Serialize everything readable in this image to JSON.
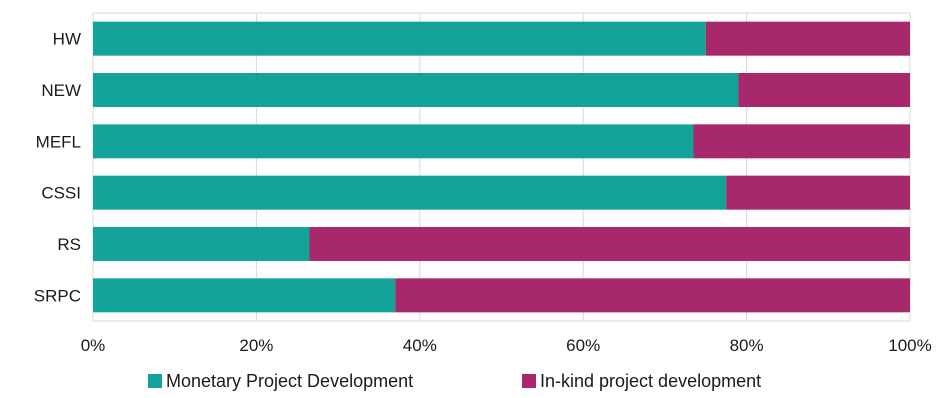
{
  "chart_data": {
    "type": "bar",
    "orientation": "horizontal",
    "stacked": true,
    "percent_stacked": true,
    "categories": [
      "HW",
      "NEW",
      "MEFL",
      "CSSI",
      "RS",
      "SRPC"
    ],
    "series": [
      {
        "name": "Monetary Project Development",
        "color": "#14a39a",
        "values": [
          75,
          79,
          73.5,
          77.5,
          26.5,
          37
        ]
      },
      {
        "name": "In-kind project development",
        "color": "#a7286b",
        "values": [
          25,
          21,
          26.5,
          22.5,
          73.5,
          63
        ]
      }
    ],
    "x_ticks": [
      "0%",
      "20%",
      "40%",
      "60%",
      "80%",
      "100%"
    ],
    "xlim": [
      0,
      100
    ],
    "grid": true,
    "legend_position": "bottom",
    "title": "",
    "xlabel": "",
    "ylabel": ""
  }
}
